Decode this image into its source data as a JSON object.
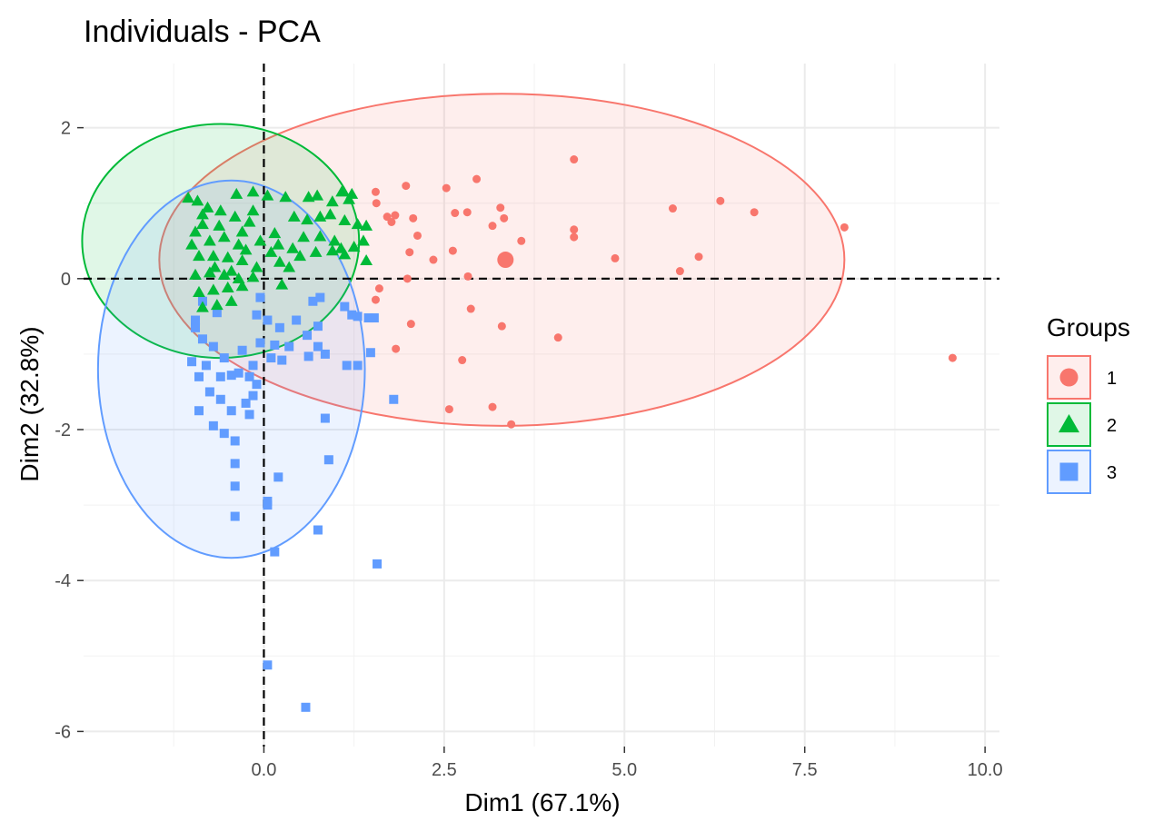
{
  "chart_data": {
    "type": "scatter",
    "title": "Individuals - PCA",
    "xlabel": "Dim1 (67.1%)",
    "ylabel": "Dim2 (32.8%)",
    "xlim": [
      -2.5,
      10.2
    ],
    "ylim": [
      -6.2,
      2.85
    ],
    "x_ticks": [
      0,
      2.5,
      5,
      7.5,
      10
    ],
    "x_tick_labels": [
      "0.0",
      "2.5",
      "5.0",
      "7.5",
      "10.0"
    ],
    "y_ticks": [
      2,
      0,
      -2,
      -4,
      -6
    ],
    "y_tick_labels": [
      "2",
      "0",
      "-2",
      "-4",
      "-6"
    ],
    "reference_lines": {
      "x": 0,
      "y": 0,
      "style": "dashed"
    },
    "grid": true,
    "legend": {
      "title": "Groups",
      "position": "right"
    },
    "series": [
      {
        "name": "1",
        "color": "#F8766D",
        "marker": "circle",
        "ellipse": {
          "cx": 3.3,
          "cy": 0.25,
          "rx": 4.75,
          "ry": 2.2
        },
        "centroid": [
          3.35,
          0.25
        ],
        "points": [
          [
            4.3,
            1.58
          ],
          [
            2.95,
            1.32
          ],
          [
            1.97,
            1.23
          ],
          [
            2.53,
            1.2
          ],
          [
            1.55,
            1.15
          ],
          [
            1.56,
            1.0
          ],
          [
            6.33,
            1.03
          ],
          [
            5.67,
            0.93
          ],
          [
            6.8,
            0.88
          ],
          [
            3.28,
            0.94
          ],
          [
            1.71,
            0.82
          ],
          [
            1.82,
            0.84
          ],
          [
            2.65,
            0.87
          ],
          [
            2.82,
            0.88
          ],
          [
            3.33,
            0.8
          ],
          [
            2.07,
            0.8
          ],
          [
            1.77,
            0.75
          ],
          [
            8.05,
            0.68
          ],
          [
            4.3,
            0.65
          ],
          [
            3.17,
            0.7
          ],
          [
            2.13,
            0.57
          ],
          [
            4.3,
            0.55
          ],
          [
            2.62,
            0.37
          ],
          [
            2.02,
            0.35
          ],
          [
            3.57,
            0.5
          ],
          [
            2.35,
            0.25
          ],
          [
            4.87,
            0.27
          ],
          [
            6.03,
            0.29
          ],
          [
            5.77,
            0.1
          ],
          [
            1.99,
            0.0
          ],
          [
            2.83,
            0.03
          ],
          [
            1.6,
            -0.13
          ],
          [
            1.55,
            -0.28
          ],
          [
            2.87,
            -0.4
          ],
          [
            2.04,
            -0.6
          ],
          [
            3.3,
            -0.63
          ],
          [
            4.08,
            -0.78
          ],
          [
            1.83,
            -0.93
          ],
          [
            2.75,
            -1.08
          ],
          [
            9.55,
            -1.05
          ],
          [
            3.17,
            -1.7
          ],
          [
            2.57,
            -1.73
          ],
          [
            3.43,
            -1.93
          ]
        ]
      },
      {
        "name": "2",
        "color": "#00BA38",
        "marker": "triangle",
        "ellipse": {
          "cx": -0.6,
          "cy": 0.5,
          "rx": 1.92,
          "ry": 1.55
        },
        "points": [
          [
            1.08,
            1.15
          ],
          [
            1.22,
            1.12
          ],
          [
            0.74,
            1.1
          ],
          [
            0.62,
            1.08
          ],
          [
            1.18,
            1.05
          ],
          [
            0.95,
            1.02
          ],
          [
            -1.05,
            1.07
          ],
          [
            -0.92,
            1.03
          ],
          [
            -0.38,
            1.12
          ],
          [
            -0.15,
            1.15
          ],
          [
            0.05,
            1.1
          ],
          [
            0.3,
            1.08
          ],
          [
            0.92,
            0.85
          ],
          [
            0.78,
            0.82
          ],
          [
            1.12,
            0.77
          ],
          [
            1.3,
            0.72
          ],
          [
            1.42,
            0.7
          ],
          [
            0.42,
            0.82
          ],
          [
            0.6,
            0.78
          ],
          [
            0.78,
            0.56
          ],
          [
            0.98,
            0.5
          ],
          [
            1.07,
            0.4
          ],
          [
            1.25,
            0.42
          ],
          [
            1.38,
            0.5
          ],
          [
            0.95,
            0.37
          ],
          [
            1.12,
            0.32
          ],
          [
            1.42,
            0.24
          ],
          [
            0.72,
            0.35
          ],
          [
            0.5,
            0.3
          ],
          [
            0.4,
            0.4
          ],
          [
            0.2,
            0.45
          ],
          [
            0.1,
            0.35
          ],
          [
            0.35,
            0.15
          ],
          [
            0.25,
            -0.08
          ],
          [
            -0.05,
            0.5
          ],
          [
            -0.3,
            0.62
          ],
          [
            -0.4,
            0.82
          ],
          [
            -0.6,
            0.9
          ],
          [
            -0.78,
            0.94
          ],
          [
            -0.85,
            0.72
          ],
          [
            -0.95,
            0.62
          ],
          [
            -0.75,
            0.5
          ],
          [
            -0.55,
            0.55
          ],
          [
            -0.35,
            0.45
          ],
          [
            -0.9,
            0.3
          ],
          [
            -0.7,
            0.3
          ],
          [
            -0.5,
            0.28
          ],
          [
            -0.3,
            0.24
          ],
          [
            -0.1,
            0.15
          ],
          [
            -0.95,
            0.05
          ],
          [
            -0.75,
            0.08
          ],
          [
            -0.55,
            0.05
          ],
          [
            -0.35,
            0.0
          ],
          [
            -0.15,
            0.02
          ],
          [
            -0.9,
            -0.18
          ],
          [
            -0.7,
            -0.15
          ],
          [
            -0.5,
            -0.12
          ],
          [
            -0.3,
            -0.1
          ],
          [
            -0.85,
            -0.38
          ],
          [
            -0.65,
            -0.35
          ],
          [
            -0.45,
            -0.3
          ],
          [
            -1.0,
            0.45
          ],
          [
            -0.62,
            0.7
          ],
          [
            -0.2,
            0.75
          ],
          [
            0.15,
            0.6
          ],
          [
            -0.15,
            0.9
          ],
          [
            0.55,
            0.55
          ],
          [
            0.22,
            0.22
          ],
          [
            -0.45,
            0.1
          ],
          [
            -0.85,
            0.85
          ],
          [
            -0.68,
            0.15
          ],
          [
            -0.25,
            0.38
          ]
        ]
      },
      {
        "name": "3",
        "color": "#619CFF",
        "marker": "square",
        "ellipse": {
          "cx": -0.45,
          "cy": -1.2,
          "rx": 1.85,
          "ry": 2.5
        },
        "points": [
          [
            0.78,
            -0.25
          ],
          [
            0.68,
            -0.3
          ],
          [
            1.12,
            -0.37
          ],
          [
            1.22,
            -0.48
          ],
          [
            1.45,
            -0.52
          ],
          [
            1.3,
            -0.5
          ],
          [
            1.53,
            -0.52
          ],
          [
            0.75,
            -0.63
          ],
          [
            0.45,
            -0.55
          ],
          [
            0.6,
            -0.75
          ],
          [
            0.22,
            -0.65
          ],
          [
            0.05,
            -0.55
          ],
          [
            -0.1,
            -0.48
          ],
          [
            0.75,
            -0.9
          ],
          [
            0.62,
            -1.03
          ],
          [
            0.85,
            -1.0
          ],
          [
            0.35,
            -0.9
          ],
          [
            0.15,
            -0.88
          ],
          [
            -0.05,
            -0.85
          ],
          [
            1.15,
            -1.15
          ],
          [
            1.3,
            -1.15
          ],
          [
            1.8,
            -1.6
          ],
          [
            1.48,
            -0.98
          ],
          [
            0.1,
            -1.05
          ],
          [
            0.25,
            -1.08
          ],
          [
            -0.15,
            -1.15
          ],
          [
            -0.2,
            -1.3
          ],
          [
            -0.35,
            -1.25
          ],
          [
            -0.45,
            -1.28
          ],
          [
            -0.55,
            -1.05
          ],
          [
            -0.7,
            -0.9
          ],
          [
            -0.85,
            -0.8
          ],
          [
            -0.95,
            -0.65
          ],
          [
            -1.0,
            -1.1
          ],
          [
            -0.9,
            -1.3
          ],
          [
            -0.75,
            -1.5
          ],
          [
            -0.6,
            -1.6
          ],
          [
            -0.45,
            -1.75
          ],
          [
            -0.9,
            -1.75
          ],
          [
            -0.7,
            -1.95
          ],
          [
            -0.55,
            -2.05
          ],
          [
            -0.25,
            -1.65
          ],
          [
            -0.15,
            -1.55
          ],
          [
            -0.1,
            -1.4
          ],
          [
            -0.2,
            -1.8
          ],
          [
            -0.4,
            -2.15
          ],
          [
            -0.4,
            -2.45
          ],
          [
            -0.4,
            -2.75
          ],
          [
            -0.4,
            -3.15
          ],
          [
            0.05,
            -2.95
          ],
          [
            0.05,
            -3.0
          ],
          [
            0.2,
            -2.63
          ],
          [
            0.85,
            -1.85
          ],
          [
            0.9,
            -2.4
          ],
          [
            0.75,
            -3.33
          ],
          [
            0.15,
            -3.62
          ],
          [
            1.57,
            -3.78
          ],
          [
            0.05,
            -5.12
          ],
          [
            0.58,
            -5.68
          ],
          [
            -0.95,
            -0.55
          ],
          [
            -0.8,
            -1.15
          ],
          [
            -0.6,
            -1.3
          ],
          [
            -0.3,
            -0.95
          ],
          [
            -0.85,
            -0.3
          ],
          [
            -0.65,
            -0.45
          ],
          [
            -0.05,
            -0.25
          ]
        ]
      }
    ]
  }
}
